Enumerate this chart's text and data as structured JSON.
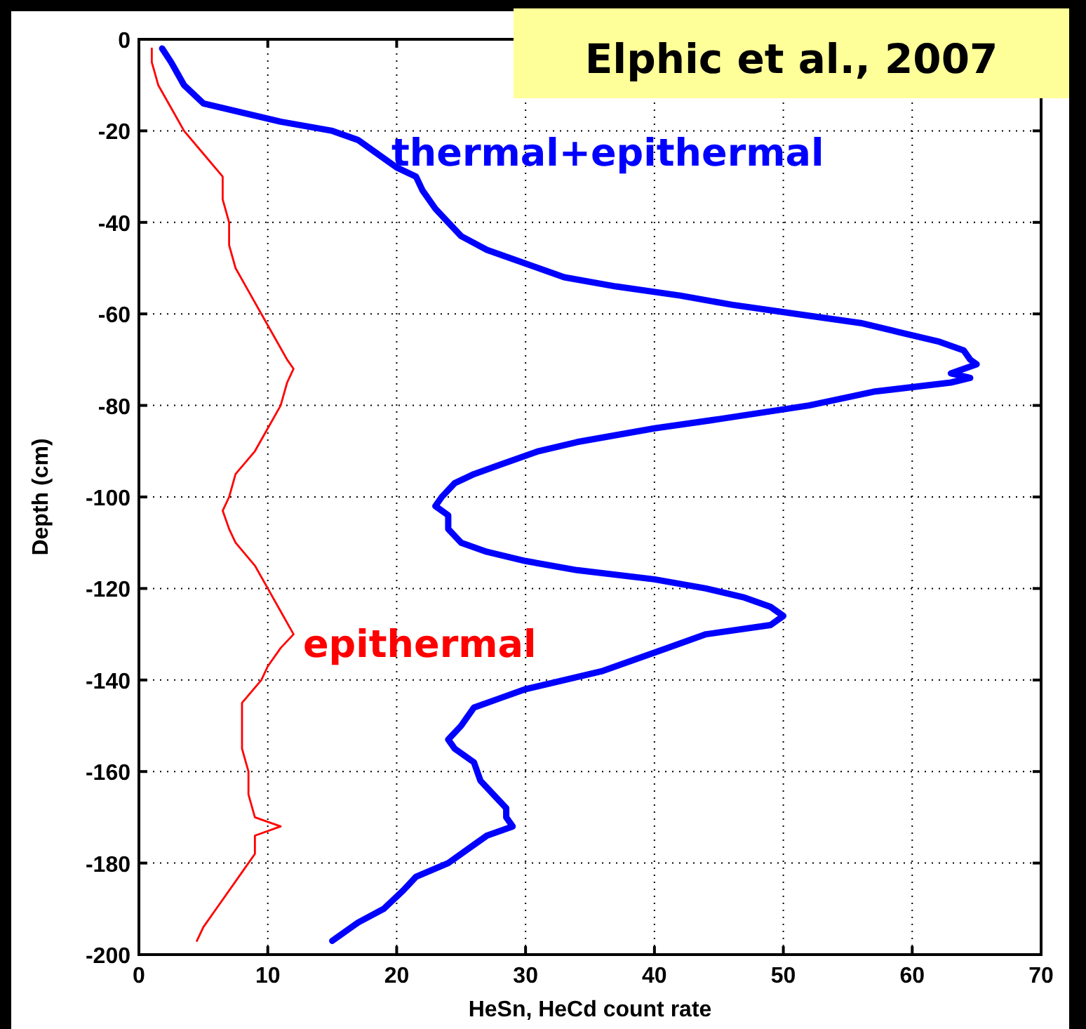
{
  "chart_data": {
    "type": "line",
    "xlabel": "HeSn, HeCd count rate",
    "ylabel": "Depth (cm)",
    "xlim": [
      0,
      70
    ],
    "xticks": [
      0,
      10,
      20,
      30,
      40,
      50,
      60,
      70
    ],
    "ylim": [
      -200,
      0
    ],
    "yticks": [
      -200,
      -180,
      -160,
      -140,
      -120,
      -100,
      -80,
      -60,
      -40,
      -20,
      0
    ],
    "grid": true,
    "annotations": [
      "Elphic et al., 2007"
    ],
    "series": [
      {
        "name": "thermal+epithermal",
        "color": "#0000ff",
        "x": [
          1.8,
          2.5,
          3.5,
          5,
          8,
          11,
          13,
          15,
          17,
          18.5,
          20,
          21.5,
          22,
          23,
          24,
          25,
          27,
          29,
          31,
          33,
          37,
          42,
          46,
          51,
          56,
          59,
          62,
          64,
          64.5,
          65,
          63,
          64.5,
          63,
          57,
          52,
          45,
          40,
          34,
          31,
          28,
          26,
          24.5,
          23.5,
          23,
          24,
          24,
          25,
          27,
          30,
          34,
          40,
          44,
          47,
          49,
          50,
          49,
          44,
          41,
          39,
          36,
          33,
          30,
          28,
          26,
          25.5,
          25,
          24,
          24.5,
          26,
          26.5,
          27.5,
          28.5,
          28.5,
          29,
          27,
          26,
          24,
          21.5,
          20.5,
          19,
          17,
          16,
          15
        ],
        "values": [
          -2,
          -5,
          -10,
          -14,
          -16,
          -18,
          -19,
          -20,
          -22,
          -25,
          -28,
          -30,
          -33,
          -37,
          -40,
          -43,
          -46,
          -48,
          -50,
          -52,
          -54,
          -56,
          -58,
          -60,
          -62,
          -64,
          -66,
          -68,
          -70,
          -71,
          -73,
          -74,
          -75,
          -77,
          -80,
          -83,
          -85,
          -88,
          -90,
          -93,
          -95,
          -97,
          -100,
          -102,
          -104,
          -107,
          -110,
          -112,
          -114,
          -116,
          -118,
          -120,
          -122,
          -124,
          -126,
          -128,
          -130,
          -133,
          -135,
          -138,
          -140,
          -142,
          -144,
          -146,
          -148,
          -150,
          -153,
          -155,
          -158,
          -162,
          -165,
          -168,
          -170,
          -172,
          -174,
          -176,
          -180,
          -183,
          -186,
          -190,
          -193,
          -195,
          -197
        ]
      },
      {
        "name": "epithermal",
        "color": "#ff0000",
        "x": [
          1,
          1,
          1.5,
          2.5,
          3.5,
          5,
          6.5,
          6.5,
          7,
          7,
          7.5,
          8.5,
          9.5,
          10.5,
          11.5,
          12,
          11.5,
          11,
          10,
          9,
          7.5,
          7,
          6.5,
          7,
          7.5,
          9,
          10,
          11,
          12,
          11,
          10,
          9.5,
          8,
          8,
          8,
          8.5,
          8.5,
          9,
          11,
          9,
          9,
          8,
          7,
          6,
          5,
          4.5
        ],
        "values": [
          -2,
          -5,
          -10,
          -15,
          -20,
          -25,
          -30,
          -35,
          -40,
          -45,
          -50,
          -55,
          -60,
          -65,
          -70,
          -72,
          -75,
          -80,
          -85,
          -90,
          -95,
          -100,
          -103,
          -107,
          -110,
          -115,
          -120,
          -125,
          -130,
          -133,
          -137,
          -140,
          -145,
          -150,
          -155,
          -160,
          -165,
          -170,
          -172,
          -174,
          -178,
          -182,
          -186,
          -190,
          -194,
          -197
        ]
      }
    ]
  }
}
